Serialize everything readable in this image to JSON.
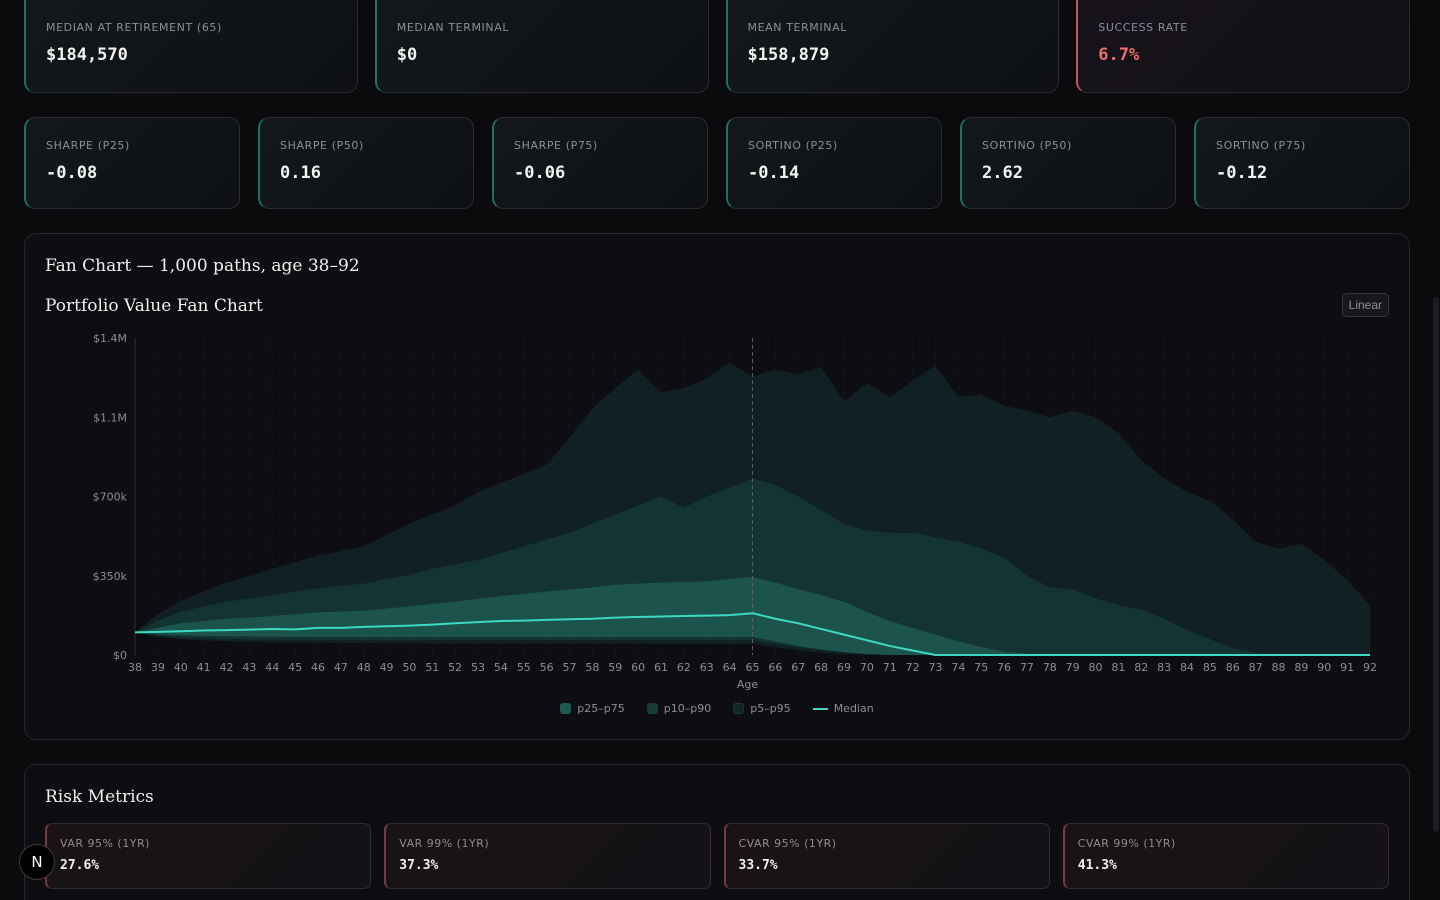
{
  "summary": [
    {
      "label": "MEDIAN AT RETIREMENT (65)",
      "value": "$184,570",
      "status": "normal"
    },
    {
      "label": "MEDIAN TERMINAL",
      "value": "$0",
      "status": "normal"
    },
    {
      "label": "MEAN TERMINAL",
      "value": "$158,879",
      "status": "normal"
    },
    {
      "label": "SUCCESS RATE",
      "value": "6.7%",
      "status": "danger"
    }
  ],
  "ratios": [
    {
      "label": "SHARPE (P25)",
      "value": "-0.08"
    },
    {
      "label": "SHARPE (P50)",
      "value": "0.16"
    },
    {
      "label": "SHARPE (P75)",
      "value": "-0.06"
    },
    {
      "label": "SORTINO (P25)",
      "value": "-0.14"
    },
    {
      "label": "SORTINO (P50)",
      "value": "2.62"
    },
    {
      "label": "SORTINO (P75)",
      "value": "-0.12"
    }
  ],
  "chart_panel": {
    "heading": "Fan Chart — 1,000 paths, age 38–92",
    "title": "Portfolio Value Fan Chart",
    "scale_toggle": "Linear"
  },
  "chart_data": {
    "type": "area",
    "title": "Portfolio Value Fan Chart",
    "xlabel": "Age",
    "ylabel": "",
    "x": [
      38,
      39,
      40,
      41,
      42,
      43,
      44,
      45,
      46,
      47,
      48,
      49,
      50,
      51,
      52,
      53,
      54,
      55,
      56,
      57,
      58,
      59,
      60,
      61,
      62,
      63,
      64,
      65,
      66,
      67,
      68,
      69,
      70,
      71,
      72,
      73,
      74,
      75,
      76,
      77,
      78,
      79,
      80,
      81,
      82,
      83,
      84,
      85,
      86,
      87,
      88,
      89,
      90,
      91,
      92
    ],
    "ylim": [
      0,
      1400000
    ],
    "y_ticks": [
      0,
      350000,
      700000,
      1050000,
      1400000
    ],
    "y_tick_labels": [
      "$0",
      "$350k",
      "$700k",
      "$1.1M",
      "$1.4M"
    ],
    "grid": true,
    "retirement_marker_age": 65,
    "legend_position": "bottom-center",
    "colors": {
      "p25_p75": "#1f5a52",
      "p10_p90": "#163d39",
      "p5_p95": "#12272a",
      "median": "#3ed8c3",
      "marker": "#5a5f66"
    },
    "series": [
      {
        "name": "p5–p95",
        "role": "p5_p95",
        "lower": [
          100000,
          80000,
          70000,
          64000,
          60000,
          58000,
          56000,
          55000,
          54000,
          53000,
          53000,
          52000,
          52000,
          51000,
          51000,
          51000,
          51000,
          50000,
          50000,
          50000,
          50000,
          50000,
          50000,
          49000,
          49000,
          49000,
          48000,
          48000,
          35000,
          20000,
          10000,
          5000,
          2000,
          0,
          0,
          0,
          0,
          0,
          0,
          0,
          0,
          0,
          0,
          0,
          0,
          0,
          0,
          0,
          0,
          0,
          0,
          0,
          0,
          0,
          0
        ],
        "upper": [
          100000,
          180000,
          240000,
          280000,
          320000,
          350000,
          380000,
          410000,
          440000,
          460000,
          480000,
          530000,
          580000,
          620000,
          660000,
          720000,
          760000,
          800000,
          840000,
          960000,
          1090000,
          1180000,
          1260000,
          1160000,
          1180000,
          1220000,
          1290000,
          1230000,
          1260000,
          1240000,
          1270000,
          1120000,
          1200000,
          1140000,
          1210000,
          1280000,
          1140000,
          1150000,
          1100000,
          1080000,
          1050000,
          1080000,
          1050000,
          980000,
          860000,
          780000,
          720000,
          680000,
          600000,
          500000,
          470000,
          490000,
          420000,
          330000,
          220000
        ]
      },
      {
        "name": "p10–p90",
        "role": "p10_p90",
        "lower": [
          100000,
          85000,
          78000,
          74000,
          71000,
          69000,
          68000,
          67000,
          66000,
          66000,
          66000,
          65000,
          65000,
          65000,
          65000,
          65000,
          65000,
          65000,
          65000,
          65000,
          65000,
          65000,
          65000,
          65000,
          65000,
          65000,
          65000,
          65000,
          50000,
          35000,
          22000,
          12000,
          5000,
          0,
          0,
          0,
          0,
          0,
          0,
          0,
          0,
          0,
          0,
          0,
          0,
          0,
          0,
          0,
          0,
          0,
          0,
          0,
          0,
          0,
          0
        ],
        "upper": [
          100000,
          150000,
          190000,
          215000,
          235000,
          250000,
          265000,
          280000,
          295000,
          305000,
          315000,
          335000,
          355000,
          380000,
          400000,
          420000,
          450000,
          480000,
          510000,
          540000,
          580000,
          620000,
          660000,
          700000,
          650000,
          700000,
          740000,
          780000,
          750000,
          700000,
          640000,
          580000,
          550000,
          540000,
          540000,
          520000,
          500000,
          470000,
          430000,
          350000,
          300000,
          290000,
          250000,
          220000,
          200000,
          160000,
          110000,
          70000,
          30000,
          10000,
          0,
          0,
          0,
          0,
          0
        ]
      },
      {
        "name": "p25–p75",
        "role": "p25_p75",
        "lower": [
          100000,
          92000,
          88000,
          85000,
          83000,
          82000,
          81000,
          80000,
          80000,
          80000,
          80000,
          80000,
          80000,
          80000,
          80000,
          80000,
          80000,
          80000,
          80000,
          80000,
          80000,
          80000,
          80000,
          80000,
          80000,
          80000,
          80000,
          80000,
          60000,
          40000,
          25000,
          12000,
          4000,
          0,
          0,
          0,
          0,
          0,
          0,
          0,
          0,
          0,
          0,
          0,
          0,
          0,
          0,
          0,
          0,
          0,
          0,
          0,
          0,
          0,
          0
        ],
        "upper": [
          100000,
          120000,
          140000,
          150000,
          160000,
          165000,
          172000,
          180000,
          188000,
          192000,
          196000,
          205000,
          215000,
          225000,
          235000,
          248000,
          260000,
          270000,
          280000,
          290000,
          298000,
          310000,
          315000,
          320000,
          322000,
          325000,
          335000,
          345000,
          320000,
          290000,
          265000,
          235000,
          190000,
          150000,
          120000,
          90000,
          60000,
          35000,
          15000,
          5000,
          0,
          0,
          0,
          0,
          0,
          0,
          0,
          0,
          0,
          0,
          0,
          0,
          0,
          0,
          0
        ]
      },
      {
        "name": "Median",
        "role": "median",
        "values": [
          100000,
          102000,
          105000,
          108000,
          110000,
          112000,
          115000,
          113000,
          120000,
          120000,
          124000,
          127000,
          130000,
          134000,
          140000,
          145000,
          150000,
          152000,
          155000,
          158000,
          160000,
          165000,
          168000,
          170000,
          172000,
          174000,
          176000,
          184570,
          160000,
          140000,
          115000,
          90000,
          65000,
          40000,
          20000,
          0,
          0,
          0,
          0,
          0,
          0,
          0,
          0,
          0,
          0,
          0,
          0,
          0,
          0,
          0,
          0,
          0,
          0,
          0,
          0
        ]
      }
    ]
  },
  "legend": [
    {
      "label": "p25–p75",
      "color": "#1f5a52",
      "kind": "box"
    },
    {
      "label": "p10–p90",
      "color": "#163d39",
      "kind": "box"
    },
    {
      "label": "p5–p95",
      "color": "#12272a",
      "kind": "box"
    },
    {
      "label": "Median",
      "color": "#3ed8c3",
      "kind": "line"
    }
  ],
  "risk_panel": {
    "heading": "Risk Metrics",
    "metrics": [
      {
        "label": "VAR 95% (1YR)",
        "value": "27.6%"
      },
      {
        "label": "VAR 99% (1YR)",
        "value": "37.3%"
      },
      {
        "label": "CVAR 95% (1YR)",
        "value": "33.7%"
      },
      {
        "label": "CVAR 99% (1YR)",
        "value": "41.3%"
      }
    ]
  },
  "badge": {
    "letter": "N"
  }
}
